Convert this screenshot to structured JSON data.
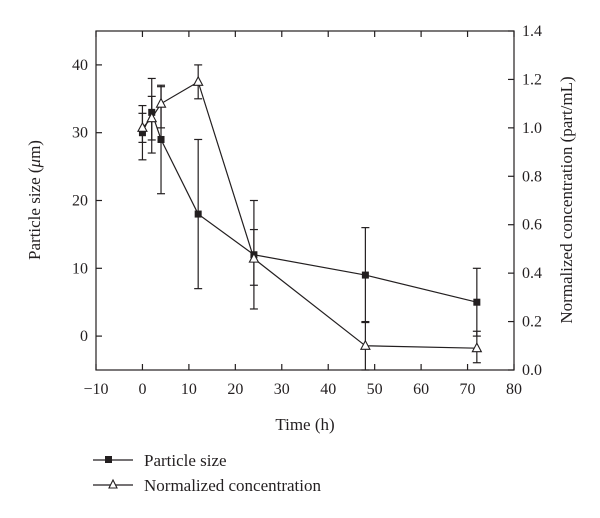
{
  "chart_data": {
    "type": "line",
    "xlabel": "Time (h)",
    "ylabel": "Particle size (μm)",
    "y2label": "Normalized concentration (part/mL)",
    "xlim": [
      -10,
      80
    ],
    "ylim": [
      -5,
      45
    ],
    "y2lim": [
      0,
      1.4
    ],
    "xticks": [
      -10,
      0,
      10,
      20,
      30,
      40,
      50,
      60,
      70,
      80
    ],
    "yticks": [
      0,
      10,
      20,
      30,
      40
    ],
    "y2ticks": [
      0.0,
      0.2,
      0.4,
      0.6,
      0.8,
      1.0,
      1.2,
      1.4
    ],
    "grid": false,
    "legend": "below",
    "series": [
      {
        "name": "Particle size",
        "axis": "left",
        "marker": "filled-square",
        "x": [
          0,
          2,
          4,
          12,
          24,
          48,
          72
        ],
        "y": [
          30,
          33,
          29,
          18,
          12,
          9,
          5
        ],
        "err_low": [
          26,
          27,
          21,
          7,
          4,
          2,
          0
        ],
        "err_high": [
          34,
          38,
          37,
          29,
          20,
          16,
          10
        ]
      },
      {
        "name": "Normalized concentration",
        "axis": "right",
        "marker": "open-triangle",
        "x": [
          0,
          2,
          4,
          12,
          24,
          48,
          72
        ],
        "y": [
          1.0,
          1.04,
          1.1,
          1.19,
          0.46,
          0.1,
          0.09
        ],
        "err_low": [
          0.94,
          0.95,
          1.0,
          1.12,
          0.35,
          0.0,
          0.03
        ],
        "err_high": [
          1.06,
          1.13,
          1.17,
          1.26,
          0.58,
          0.2,
          0.16
        ]
      }
    ]
  }
}
